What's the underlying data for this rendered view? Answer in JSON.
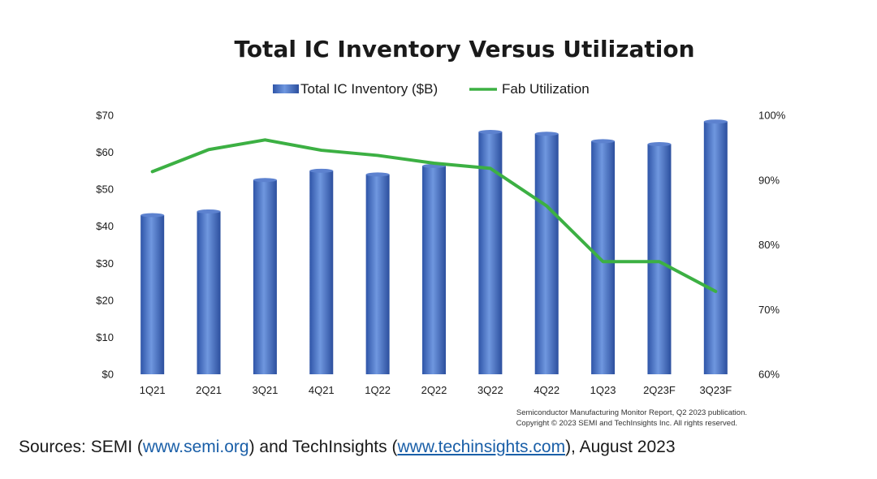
{
  "chart_data": {
    "type": "bar+line",
    "title": "Total IC Inventory Versus Utilization",
    "categories": [
      "1Q21",
      "2Q21",
      "3Q21",
      "4Q21",
      "1Q22",
      "2Q22",
      "3Q22",
      "4Q22",
      "1Q23",
      "2Q23F",
      "3Q23F"
    ],
    "series": [
      {
        "name": "Total IC Inventory ($B)",
        "type": "bar",
        "axis": "left",
        "color": "#4472c4",
        "values": [
          43,
          44,
          52.5,
          55,
          54,
          56.3,
          65.5,
          65,
          63,
          62.2,
          68.3
        ]
      },
      {
        "name": "Fab Utilization",
        "type": "line",
        "axis": "right",
        "color": "#3cb043",
        "values": [
          91.3,
          94.7,
          96.2,
          94.6,
          93.8,
          92.6,
          91.8,
          86,
          77.4,
          77.4,
          72.8
        ]
      }
    ],
    "y_left": {
      "min": 0,
      "max": 70,
      "ticks": [
        "$0",
        "$10",
        "$20",
        "$30",
        "$40",
        "$50",
        "$60",
        "$70"
      ]
    },
    "y_right": {
      "min": 60,
      "max": 100,
      "ticks": [
        "60%",
        "70%",
        "80%",
        "90%",
        "100%"
      ]
    },
    "legend_position": "top-center",
    "grid": false
  },
  "footnote": {
    "line1": "Semiconductor Manufacturing Monitor Report, Q2 2023 publication.",
    "line2": "Copyright © 2023 SEMI and TechInsights Inc.  All rights reserved."
  },
  "sources": {
    "prefix": "Sources: SEMI (",
    "link1": "www.semi.org",
    "middle": ") and TechInsights (",
    "link2": "www.techinsights.com",
    "suffix": "), August 2023"
  }
}
